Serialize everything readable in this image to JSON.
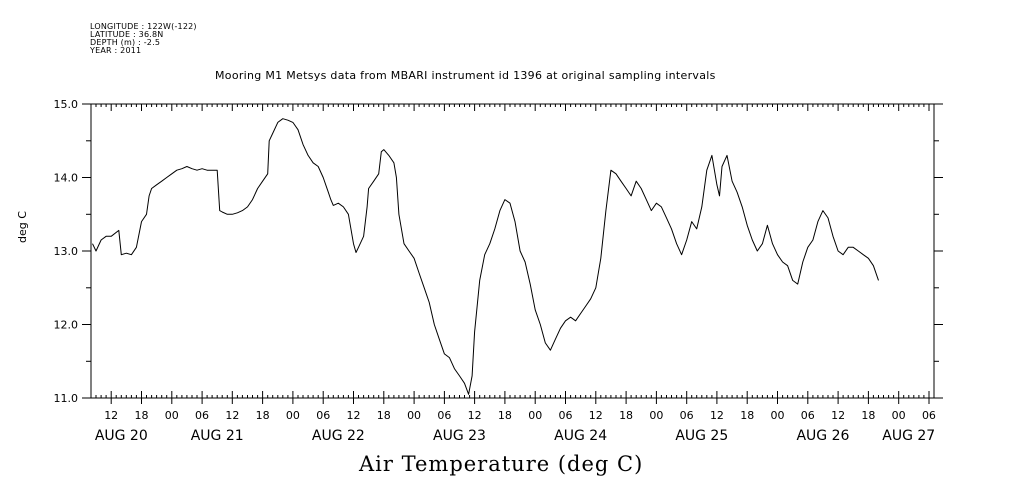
{
  "header": {
    "longitude": "LONGITUDE : 122W(-122)",
    "latitude": "LATITUDE : 36.8N",
    "depth": "DEPTH (m) : -2.5",
    "year": "YEAR : 2011",
    "title": "Mooring M1 Metsys data from MBARI instrument id 1396 at original sampling intervals"
  },
  "footer": {
    "variable_title": "Air Temperature (deg C)"
  },
  "chart_data": {
    "type": "line",
    "title": "Mooring M1 Metsys data from MBARI instrument id 1396 at original sampling intervals",
    "xlabel": "",
    "ylabel": "deg C",
    "ylim": [
      11.0,
      15.0
    ],
    "y_ticks": [
      "11.0",
      "12.0",
      "13.0",
      "14.0",
      "15.0"
    ],
    "x_units": "hours after 2011-08-20 00:00",
    "xlim": [
      8,
      175
    ],
    "hour_ticks": [
      {
        "x": 12,
        "label": "12"
      },
      {
        "x": 18,
        "label": "18"
      },
      {
        "x": 24,
        "label": "00"
      },
      {
        "x": 30,
        "label": "06"
      },
      {
        "x": 36,
        "label": "12"
      },
      {
        "x": 42,
        "label": "18"
      },
      {
        "x": 48,
        "label": "00"
      },
      {
        "x": 54,
        "label": "06"
      },
      {
        "x": 60,
        "label": "12"
      },
      {
        "x": 66,
        "label": "18"
      },
      {
        "x": 72,
        "label": "00"
      },
      {
        "x": 78,
        "label": "06"
      },
      {
        "x": 84,
        "label": "12"
      },
      {
        "x": 90,
        "label": "18"
      },
      {
        "x": 96,
        "label": "00"
      },
      {
        "x": 102,
        "label": "06"
      },
      {
        "x": 108,
        "label": "12"
      },
      {
        "x": 114,
        "label": "18"
      },
      {
        "x": 120,
        "label": "00"
      },
      {
        "x": 126,
        "label": "06"
      },
      {
        "x": 132,
        "label": "12"
      },
      {
        "x": 138,
        "label": "18"
      },
      {
        "x": 144,
        "label": "00"
      },
      {
        "x": 150,
        "label": "06"
      },
      {
        "x": 156,
        "label": "12"
      },
      {
        "x": 162,
        "label": "18"
      },
      {
        "x": 168,
        "label": "00"
      },
      {
        "x": 174,
        "label": "06"
      }
    ],
    "date_labels": [
      {
        "x": 14,
        "label": "AUG 20"
      },
      {
        "x": 33,
        "label": "AUG 21"
      },
      {
        "x": 57,
        "label": "AUG 22"
      },
      {
        "x": 81,
        "label": "AUG 23"
      },
      {
        "x": 105,
        "label": "AUG 24"
      },
      {
        "x": 129,
        "label": "AUG 25"
      },
      {
        "x": 153,
        "label": "AUG 26"
      },
      {
        "x": 170,
        "label": "AUG 27"
      }
    ],
    "series": [
      {
        "values": [
          [
            8.3,
            13.1
          ],
          [
            9,
            13.0
          ],
          [
            10,
            13.15
          ],
          [
            11,
            13.2
          ],
          [
            12,
            13.2
          ],
          [
            13.5,
            13.28
          ],
          [
            14,
            12.95
          ],
          [
            15,
            12.97
          ],
          [
            16,
            12.95
          ],
          [
            17,
            13.05
          ],
          [
            18,
            13.4
          ],
          [
            19,
            13.5
          ],
          [
            19.5,
            13.75
          ],
          [
            20,
            13.85
          ],
          [
            21,
            13.9
          ],
          [
            22,
            13.95
          ],
          [
            23,
            14.0
          ],
          [
            24,
            14.05
          ],
          [
            25,
            14.1
          ],
          [
            26,
            14.12
          ],
          [
            27,
            14.15
          ],
          [
            28,
            14.12
          ],
          [
            29,
            14.1
          ],
          [
            30,
            14.12
          ],
          [
            31,
            14.1
          ],
          [
            32,
            14.1
          ],
          [
            33,
            14.1
          ],
          [
            33.5,
            13.55
          ],
          [
            34,
            13.53
          ],
          [
            35,
            13.5
          ],
          [
            36,
            13.5
          ],
          [
            37,
            13.52
          ],
          [
            38,
            13.55
          ],
          [
            39,
            13.6
          ],
          [
            40,
            13.7
          ],
          [
            41,
            13.85
          ],
          [
            42,
            13.95
          ],
          [
            43,
            14.05
          ],
          [
            43.3,
            14.5
          ],
          [
            44,
            14.6
          ],
          [
            45,
            14.75
          ],
          [
            46,
            14.8
          ],
          [
            47,
            14.78
          ],
          [
            48,
            14.75
          ],
          [
            49,
            14.65
          ],
          [
            50,
            14.45
          ],
          [
            51,
            14.3
          ],
          [
            52,
            14.2
          ],
          [
            53,
            14.15
          ],
          [
            54,
            14.0
          ],
          [
            55,
            13.8
          ],
          [
            55.5,
            13.7
          ],
          [
            56,
            13.62
          ],
          [
            57,
            13.65
          ],
          [
            58,
            13.6
          ],
          [
            59,
            13.5
          ],
          [
            60,
            13.1
          ],
          [
            60.5,
            12.98
          ],
          [
            61,
            13.05
          ],
          [
            62,
            13.2
          ],
          [
            62.7,
            13.6
          ],
          [
            63,
            13.85
          ],
          [
            64,
            13.95
          ],
          [
            65,
            14.05
          ],
          [
            65.5,
            14.35
          ],
          [
            66,
            14.38
          ],
          [
            67,
            14.3
          ],
          [
            68,
            14.2
          ],
          [
            68.5,
            14.0
          ],
          [
            69,
            13.5
          ],
          [
            70,
            13.1
          ],
          [
            71,
            13.0
          ],
          [
            72,
            12.9
          ],
          [
            73,
            12.7
          ],
          [
            74,
            12.5
          ],
          [
            75,
            12.3
          ],
          [
            76,
            12.0
          ],
          [
            77,
            11.8
          ],
          [
            78,
            11.6
          ],
          [
            79,
            11.55
          ],
          [
            80,
            11.4
          ],
          [
            81,
            11.3
          ],
          [
            82,
            11.2
          ],
          [
            82.8,
            11.05
          ],
          [
            83.5,
            11.3
          ],
          [
            84,
            11.9
          ],
          [
            85,
            12.6
          ],
          [
            86,
            12.95
          ],
          [
            87,
            13.1
          ],
          [
            88,
            13.3
          ],
          [
            89,
            13.55
          ],
          [
            90,
            13.7
          ],
          [
            91,
            13.65
          ],
          [
            92,
            13.4
          ],
          [
            93,
            13.0
          ],
          [
            94,
            12.85
          ],
          [
            95,
            12.55
          ],
          [
            96,
            12.2
          ],
          [
            97,
            12.0
          ],
          [
            98,
            11.75
          ],
          [
            99,
            11.65
          ],
          [
            100,
            11.8
          ],
          [
            101,
            11.95
          ],
          [
            102,
            12.05
          ],
          [
            103,
            12.1
          ],
          [
            104,
            12.05
          ],
          [
            105,
            12.15
          ],
          [
            106,
            12.25
          ],
          [
            107,
            12.35
          ],
          [
            108,
            12.5
          ],
          [
            109,
            12.9
          ],
          [
            110,
            13.55
          ],
          [
            111,
            14.1
          ],
          [
            112,
            14.05
          ],
          [
            113,
            13.95
          ],
          [
            114,
            13.85
          ],
          [
            115,
            13.75
          ],
          [
            116,
            13.95
          ],
          [
            117,
            13.85
          ],
          [
            118,
            13.7
          ],
          [
            119,
            13.55
          ],
          [
            120,
            13.65
          ],
          [
            121,
            13.6
          ],
          [
            122,
            13.45
          ],
          [
            123,
            13.3
          ],
          [
            124,
            13.1
          ],
          [
            125,
            12.95
          ],
          [
            126,
            13.15
          ],
          [
            127,
            13.4
          ],
          [
            128,
            13.3
          ],
          [
            129,
            13.6
          ],
          [
            130,
            14.1
          ],
          [
            131,
            14.3
          ],
          [
            132,
            13.9
          ],
          [
            132.5,
            13.75
          ],
          [
            133,
            14.15
          ],
          [
            134,
            14.3
          ],
          [
            135,
            13.95
          ],
          [
            136,
            13.8
          ],
          [
            137,
            13.6
          ],
          [
            138,
            13.35
          ],
          [
            139,
            13.15
          ],
          [
            140,
            13.0
          ],
          [
            141,
            13.1
          ],
          [
            142,
            13.35
          ],
          [
            143,
            13.1
          ],
          [
            144,
            12.95
          ],
          [
            145,
            12.85
          ],
          [
            146,
            12.8
          ],
          [
            147,
            12.6
          ],
          [
            148,
            12.55
          ],
          [
            149,
            12.85
          ],
          [
            150,
            13.05
          ],
          [
            151,
            13.15
          ],
          [
            152,
            13.4
          ],
          [
            153,
            13.55
          ],
          [
            154,
            13.45
          ],
          [
            155,
            13.2
          ],
          [
            156,
            13.0
          ],
          [
            157,
            12.95
          ],
          [
            158,
            13.05
          ],
          [
            159,
            13.05
          ],
          [
            160,
            13.0
          ],
          [
            161,
            12.95
          ],
          [
            162,
            12.9
          ],
          [
            163,
            12.8
          ],
          [
            164,
            12.6
          ]
        ]
      }
    ]
  }
}
